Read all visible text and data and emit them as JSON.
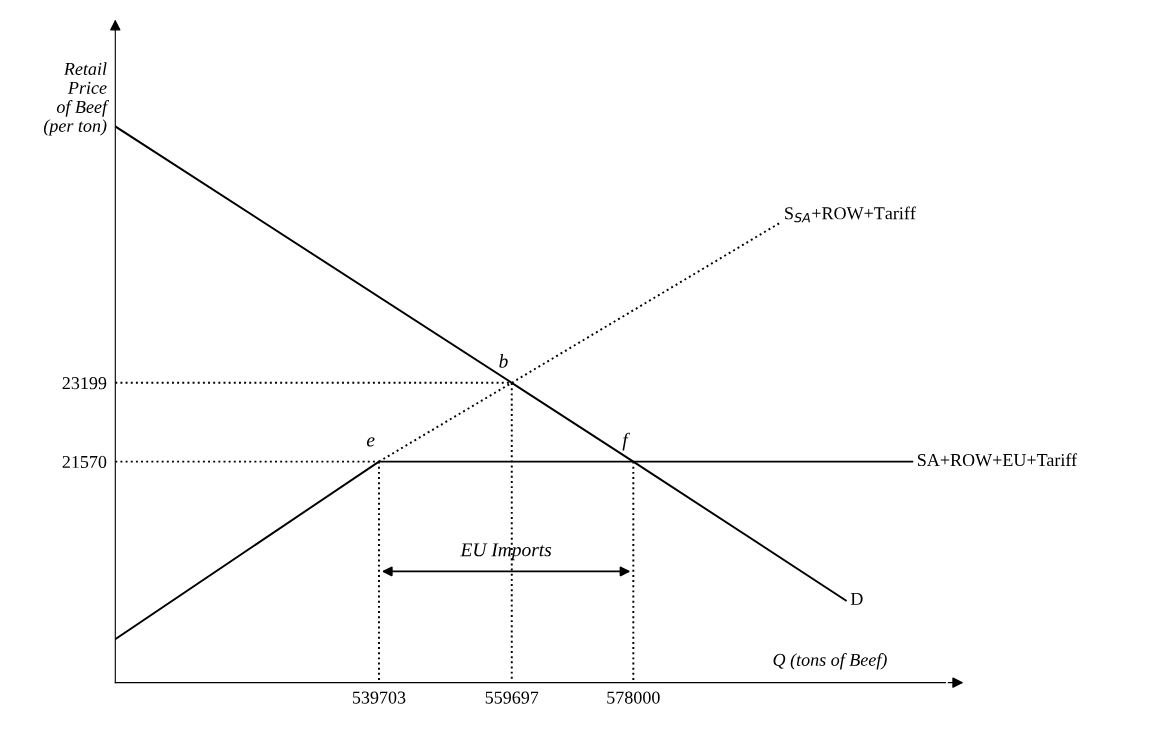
{
  "chart_data": {
    "type": "line",
    "xlabel": "Q (tons of Beef)",
    "ylabel": "Retail\nPrice\nof Beef\n(per ton)",
    "xlim": [
      500000,
      625000
    ],
    "ylim": [
      17000,
      30500
    ],
    "xticks": [
      539703,
      559697,
      578000
    ],
    "yticks": [
      23199,
      21570
    ],
    "grid": false,
    "legend": false,
    "marker": "none",
    "series": [
      {
        "name": "D",
        "color": "#000000",
        "line_style": "solid",
        "x": [
          500000,
          559697,
          578000,
          610000
        ],
        "values": [
          28500,
          23199,
          21570,
          18700
        ]
      },
      {
        "name": "SA+ROW+EU+Tariff",
        "color": "#000000",
        "line_style": "solid",
        "x": [
          500000,
          539703,
          620000
        ],
        "values": [
          17900,
          21570,
          21570
        ]
      },
      {
        "name": "S$_{SA}$+ROW+Tariff",
        "color": "#000000",
        "line_style": "dotted",
        "x": [
          539703,
          559697,
          600000
        ],
        "values": [
          21570,
          23199,
          26500
        ]
      },
      {
        "color": "#000000",
        "line_style": "dotted",
        "x": [
          500000,
          559697,
          559697
        ],
        "values": [
          23199,
          23199,
          17000
        ]
      },
      {
        "color": "#000000",
        "line_style": "dotted",
        "x": [
          500000,
          539703
        ],
        "values": [
          21570,
          21570
        ]
      },
      {
        "color": "#000000",
        "line_style": "dotted",
        "x": [
          539703,
          539703
        ],
        "values": [
          21570,
          17000
        ]
      },
      {
        "color": "#000000",
        "line_style": "dotted",
        "x": [
          578000,
          578000
        ],
        "values": [
          21570,
          17000
        ]
      }
    ],
    "annotations": [
      {
        "text": "b",
        "x": 559697,
        "y": 23199
      },
      {
        "text": "e",
        "x": 539703,
        "y": 21570
      },
      {
        "text": "f",
        "x": 578000,
        "y": 21570
      },
      {
        "text": "EU Imports",
        "x": 558851,
        "y": 19300
      }
    ]
  }
}
